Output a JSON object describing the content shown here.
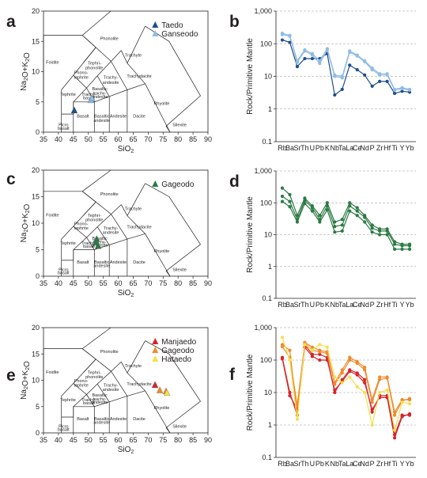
{
  "tas_common": {
    "xlabel": "SiO2",
    "ylabel": "Na2O+K2O",
    "xlim": [
      35,
      90
    ],
    "ylim": [
      0,
      20
    ],
    "xticks": [
      35,
      40,
      45,
      50,
      55,
      60,
      65,
      70,
      75,
      80,
      85,
      90
    ],
    "yticks": [
      0,
      5,
      10,
      15,
      20
    ],
    "fields": [
      "Foidite",
      "Phonolite",
      "Trachyte",
      "Tephri-phonolite",
      "Phono-tephrite",
      "Trachy-andesite",
      "Trachydacite",
      "Tephrite",
      "Basaltic trachy-andesite",
      "Trachy-basalt",
      "Basalt",
      "Basaltic andesite",
      "Andesite",
      "Dacite",
      "Rhyolite",
      "Picro basalt",
      "Silexite"
    ]
  },
  "spider_common": {
    "ylabel": "Rock/Primitive Mantle",
    "ylim": [
      0.1,
      1000
    ],
    "yscale": "log",
    "yticks": [
      "0.1",
      "1",
      "10",
      "100",
      "1,000"
    ],
    "categories": [
      "Rb",
      "Ba",
      "Sr",
      "Th",
      "U",
      "Pb",
      "K",
      "Nb",
      "Ta",
      "La",
      "Ce",
      "Nd",
      "P",
      "Zr",
      "Hf",
      "Ti",
      "Y",
      "Yb"
    ],
    "category_labels": [
      "Rb",
      "Ba",
      "Sr",
      "Th",
      "U",
      "Pb",
      "K",
      "Nb",
      "Ta",
      "La",
      "Ce",
      "Nd",
      "P",
      "Zr",
      "Hf",
      "Ti",
      "Y",
      "Yb"
    ],
    "grid": "dashed horizontal"
  },
  "chart_data": [
    {
      "panel": "a",
      "type": "scatter",
      "legend_position": "top-right",
      "series": [
        {
          "name": "Taedo",
          "color": "#1f4e8c",
          "marker": "triangle",
          "points": [
            [
              45.3,
              3.6
            ]
          ]
        },
        {
          "name": "Ganseodo",
          "color": "#8fbce6",
          "marker": "triangle",
          "points": [
            [
              50.8,
              5.3
            ],
            [
              51.2,
              5.6
            ]
          ]
        }
      ]
    },
    {
      "panel": "b",
      "type": "line",
      "series": [
        {
          "name": "Taedo",
          "color": "#1f4e8c",
          "values": [
            130,
            110,
            20,
            35,
            35,
            35,
            50,
            2.7,
            4,
            22,
            16,
            11,
            5,
            7,
            7,
            3,
            3.5,
            3.3
          ]
        },
        {
          "name": "Ganseodo",
          "color": "#8fbce6",
          "values": [
            210,
            180,
            30,
            65,
            50,
            30,
            70,
            11,
            10,
            60,
            45,
            30,
            18,
            12,
            12,
            4,
            4.5,
            4
          ],
          "variants": [
            [
              190,
              170,
              27,
              60,
              45,
              25,
              65,
              10,
              9,
              55,
              42,
              28,
              16,
              11,
              11,
              3.8,
              4.2,
              3.8
            ]
          ]
        }
      ]
    },
    {
      "panel": "c",
      "type": "scatter",
      "legend_position": "top-right",
      "series": [
        {
          "name": "Gageodo",
          "color": "#2c7a43",
          "marker": "triangle",
          "points": [
            [
              52.8,
              7.0
            ],
            [
              53.3,
              5.7
            ],
            [
              52.5,
              6.4
            ]
          ]
        }
      ]
    },
    {
      "panel": "d",
      "type": "line",
      "series": [
        {
          "name": "Gageodo",
          "color": "#2c7a43",
          "values": [
            290,
            180,
            40,
            140,
            80,
            40,
            100,
            25,
            30,
            100,
            70,
            40,
            20,
            15,
            15,
            6,
            5,
            5
          ],
          "variants": [
            [
              160,
              110,
              30,
              120,
              70,
              30,
              80,
              18,
              20,
              80,
              55,
              35,
              16,
              13,
              13,
              5,
              4.5,
              4.5
            ],
            [
              110,
              75,
              25,
              95,
              55,
              25,
              60,
              12,
              13,
              55,
              40,
              25,
              12,
              10,
              10,
              3.5,
              3.5,
              3.5
            ]
          ]
        }
      ]
    },
    {
      "panel": "e",
      "type": "scatter",
      "legend_position": "top-right",
      "series": [
        {
          "name": "Manjaedo",
          "color": "#d6242a",
          "marker": "triangle",
          "points": [
            [
              72.3,
              9.1
            ]
          ]
        },
        {
          "name": "Gageodo",
          "color": "#f08a2c",
          "marker": "triangle",
          "points": [
            [
              73.9,
              8.1
            ],
            [
              76.0,
              7.9
            ]
          ]
        },
        {
          "name": "Hataedo",
          "color": "#f4e04d",
          "marker": "triangle",
          "points": [
            [
              76.3,
              7.6
            ]
          ]
        }
      ]
    },
    {
      "panel": "f",
      "type": "line",
      "series": [
        {
          "name": "Manjaedo",
          "color": "#d6242a",
          "values": [
            110,
            8,
            3,
            300,
            150,
            150,
            120,
            10,
            25,
            50,
            40,
            25,
            2.5,
            8,
            8,
            0.5,
            2,
            2
          ],
          "variants": [
            [
              120,
              10,
              2,
              250,
              130,
              100,
              100,
              12,
              22,
              45,
              35,
              20,
              3,
              7,
              7,
              0.4,
              1.8,
              2.2
            ]
          ]
        },
        {
          "name": "Gageodo",
          "color": "#f08a2c",
          "values": [
            300,
            200,
            2,
            350,
            250,
            200,
            180,
            20,
            50,
            120,
            90,
            60,
            6,
            30,
            30,
            2.5,
            6,
            6
          ],
          "variants": [
            [
              260,
              120,
              4,
              330,
              200,
              180,
              160,
              18,
              40,
              100,
              80,
              50,
              5,
              25,
              28,
              2,
              5.5,
              6.5
            ]
          ]
        },
        {
          "name": "Hataedo",
          "color": "#f4e04d",
          "values": [
            500,
            100,
            1.5,
            300,
            200,
            300,
            250,
            30,
            20,
            30,
            15,
            10,
            1,
            10,
            12,
            0.7,
            5,
            4.5
          ]
        }
      ]
    }
  ]
}
